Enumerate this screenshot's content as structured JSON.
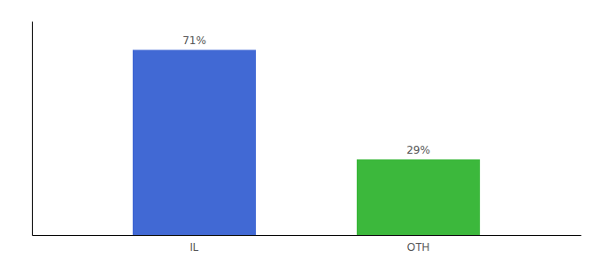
{
  "chart_data": {
    "type": "bar",
    "categories": [
      "IL",
      "OTH"
    ],
    "values": [
      71,
      29
    ],
    "value_labels": [
      "71%",
      "29%"
    ],
    "colors": [
      "#4169d4",
      "#3cb83c"
    ],
    "ylim": [
      0,
      82
    ],
    "yticks": [],
    "data_labels": true,
    "tick_labels": "x"
  }
}
